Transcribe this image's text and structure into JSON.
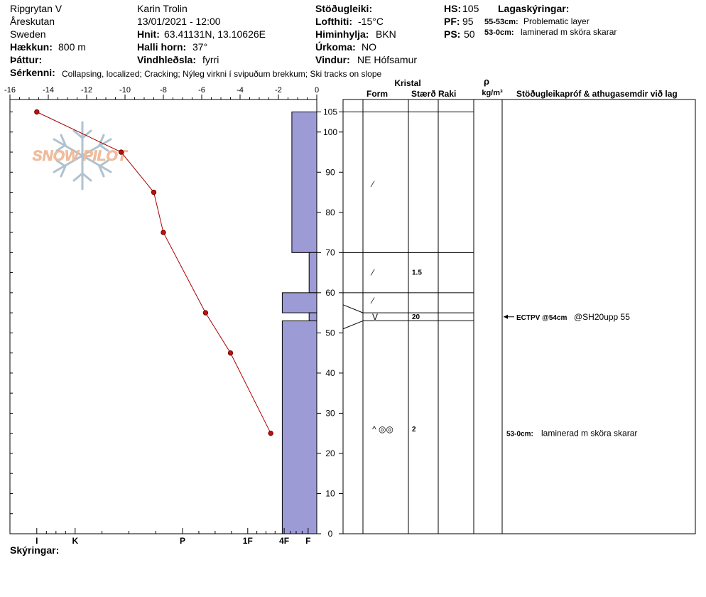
{
  "header": {
    "location": "Ripgrytan V",
    "region": "Åreskutan",
    "country": "Sweden",
    "elevation_label": "Hækkun:",
    "elevation": "800 m",
    "aspect_label": "Þáttur:",
    "observer": "Karin Trolin",
    "datetime": "13/01/2021 - 12:00",
    "coords_label": "Hnit:",
    "coords": "63.41131N, 13.10626E",
    "slope_label": "Halli horn:",
    "slope": "37°",
    "wind_loading_label": "Vindhleðsla:",
    "wind_loading": "fyrri",
    "stability_label": "Stöðugleiki:",
    "air_temp_label": "Lofthiti:",
    "air_temp": "-15°C",
    "sky_label": "Himinhylja:",
    "sky": "BKN",
    "precip_label": "Úrkoma:",
    "precip": "NO",
    "wind_label": "Vindur:",
    "wind": "NE Hófsamur",
    "hs_label": "HS:",
    "hs": "105",
    "pf_label": "PF:",
    "pf": "95",
    "ps_label": "PS:",
    "ps": "50",
    "layers_label": "Lagaskýringar:",
    "layer_notes": [
      {
        "depth": "55-53cm:",
        "text": "Problematic layer"
      },
      {
        "depth": "53-0cm:",
        "text": "laminerad m sköra skarar"
      }
    ],
    "features_label": "Sérkenni:",
    "features": "Collapsing, localized;  Cracking;  Nýleg virkni í svipuðum brekkum;  Ski tracks on slope"
  },
  "footer": {
    "notes_label": "Skýringar:"
  },
  "watermark": "SNOW PILOT",
  "colors": {
    "hardness_fill": "#9c9bd6",
    "temp_line": "#aa0000",
    "temp_point": "#bb1111",
    "watermark": "#f0b898",
    "snowflake": "#a8bccb"
  },
  "table_headers": {
    "kristal": "Kristal",
    "form": "Form",
    "size": "Stærð",
    "moisture": "Raki",
    "rho": "ρ",
    "density_unit": "kg/m³",
    "stability_tests": "Stöðugleikapróf & athugasemdir við lag"
  },
  "chart_data": {
    "type": "snow-profile",
    "temperature": {
      "xlim": [
        -16,
        0
      ],
      "x_ticks": [
        "-16",
        "-14",
        "-12",
        "-10",
        "-8",
        "-6",
        "-4",
        "-2",
        "0"
      ],
      "x_tick_values": [
        -16,
        -14,
        -12,
        -10,
        -8,
        -6,
        -4,
        -2,
        0
      ],
      "points": [
        {
          "height": 105,
          "temp": -14.6
        },
        {
          "height": 95,
          "temp": -10.2
        },
        {
          "height": 85,
          "temp": -8.5
        },
        {
          "height": 75,
          "temp": -8.0
        },
        {
          "height": 55,
          "temp": -5.8
        },
        {
          "height": 45,
          "temp": -4.5
        },
        {
          "height": 25,
          "temp": -2.4
        }
      ]
    },
    "height_axis": {
      "ylim": [
        0,
        105
      ],
      "ticks": [
        "0",
        "10",
        "20",
        "30",
        "40",
        "50",
        "60",
        "70",
        "80",
        "90",
        "100",
        "105"
      ],
      "tick_values": [
        0,
        10,
        20,
        30,
        40,
        50,
        60,
        70,
        80,
        90,
        100,
        105
      ]
    },
    "hardness_axis": {
      "labels": [
        "I",
        "K",
        "P",
        "1F",
        "4F",
        "F"
      ],
      "label_values": [
        14.6,
        12.6,
        7.0,
        3.6,
        1.7,
        0.45
      ]
    },
    "hardness_layers": [
      {
        "bottom": 70,
        "top": 105,
        "width": 1.3
      },
      {
        "bottom": 60,
        "top": 70,
        "width": 0.4
      },
      {
        "bottom": 55,
        "top": 60,
        "width": 1.8
      },
      {
        "bottom": 53,
        "top": 55,
        "width": 0.4
      },
      {
        "bottom": 0,
        "top": 53,
        "width": 1.8
      }
    ],
    "layer_boundaries": [
      105,
      70,
      60,
      55,
      53,
      0
    ],
    "crystal_rows": [
      {
        "height": 87,
        "form": "⁄",
        "size": ""
      },
      {
        "height": 65,
        "form": "⁄",
        "size": "1.5"
      },
      {
        "height": 58,
        "form": "⁄",
        "size": ""
      },
      {
        "height": 54,
        "form": "V",
        "size": "20"
      },
      {
        "height": 26,
        "form": "^ ◎◎",
        "size": "2"
      }
    ],
    "stability_notes": [
      {
        "height": 54,
        "test": "ECTPV @54cm",
        "comment": "@SH20upp 55",
        "arrow": true
      },
      {
        "height": 25,
        "test": "53-0cm:",
        "comment": "laminerad m sköra skarar",
        "arrow": false
      }
    ]
  }
}
